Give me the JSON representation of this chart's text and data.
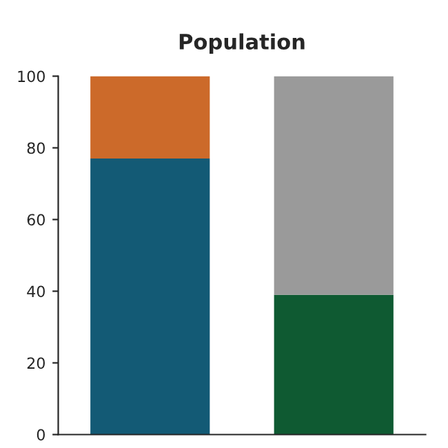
{
  "chart_data": {
    "type": "bar",
    "title": "Population",
    "categories": [
      null,
      null
    ],
    "stacked": true,
    "series": [
      {
        "colors": [
          "#135a75",
          "#0f5a32"
        ],
        "values": [
          77,
          39
        ]
      },
      {
        "colors": [
          "#cc6a2a",
          "#9a9a9a"
        ],
        "values": [
          23,
          61
        ]
      }
    ],
    "ylim": [
      0,
      100
    ],
    "yticks": [
      0,
      20,
      40,
      60,
      80,
      100
    ],
    "grid": false,
    "legend": false
  }
}
